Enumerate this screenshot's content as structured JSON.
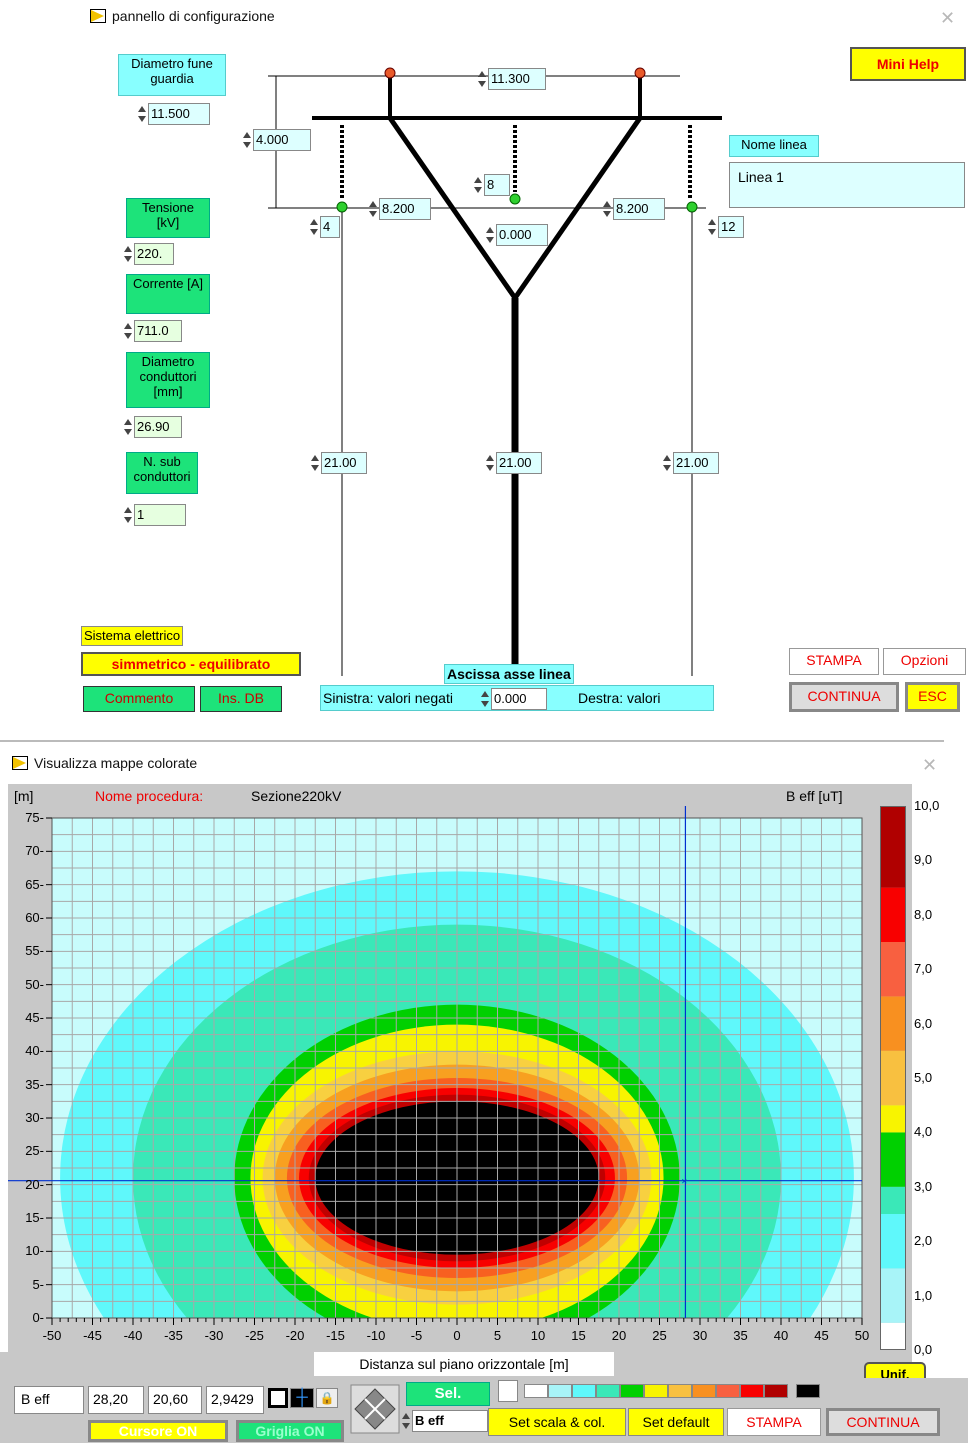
{
  "config_window": {
    "title": "pannello di configurazione",
    "mini_help": "Mini Help",
    "diametro_fune_label": "Diametro fune guardia",
    "diametro_fune_value": "11.500",
    "dist_guard_vertical": "4.000",
    "dist_guard_horizontal": "11.300",
    "nome_linea_label": "Nome linea",
    "nome_linea_value": "Linea 1",
    "tensione_label": "Tensione [kV]",
    "tensione_value": "220.",
    "corrente_label": "Corrente [A]",
    "corrente_value": "711.0",
    "diametro_cond_label": "Diametro conduttori [mm]",
    "diametro_cond_value": "26.90",
    "nsub_label": "N. sub conduttori",
    "nsub_value": "1",
    "phase_left_index": "4",
    "phase_center_index": "8",
    "phase_right_index": "12",
    "left_offset": "8.200",
    "right_offset": "8.200",
    "center_offset": "0.000",
    "height_left": "21.00",
    "height_center": "21.00",
    "height_right": "21.00",
    "sistema_label": "Sistema elettrico",
    "sistema_value": "simmetrico - equilibrato",
    "commento": "Commento",
    "ins_db": "Ins. DB",
    "ascissa_label": "Ascissa asse linea",
    "sinistra": "Sinistra: valori negati",
    "ascissa_value": "0.000",
    "destra": "Destra: valori",
    "stampa": "STAMPA",
    "opzioni": "Opzioni",
    "continua": "CONTINUA",
    "esc": "ESC"
  },
  "map_window": {
    "title": "Visualizza mappe colorate",
    "y_unit": "[m]",
    "nome_proc_label": "Nome procedura:",
    "nome_proc_value": "Sezione220kV",
    "field_label": "B eff [uT]",
    "xlabel": "Distanza sul piano orizzontale [m]",
    "unif": "Unif.",
    "cursor_field": "B eff",
    "cursor_x": "28,20",
    "cursor_y": "20,60",
    "cursor_val": "2,9429",
    "sel": "Sel.",
    "sel_value": "B eff",
    "set_scala": "Set scala & col.",
    "set_default": "Set default",
    "stampa": "STAMPA",
    "continua": "CONTINUA",
    "cursore_on": "Cursore ON",
    "griglia_on": "Griglia ON",
    "colors": {
      "c1": "#c8fcfc",
      "c2": "#5ff8fb",
      "c3": "#3ae8b8",
      "c4": "#00d000",
      "c5": "#f8f400",
      "c6": "#f8d040",
      "c7": "#f8a020",
      "c8": "#f86020",
      "c9": "#f80000",
      "c10": "#c00000",
      "c11": "#000000"
    }
  },
  "chart_data": {
    "type": "heatmap",
    "title": "",
    "xlabel": "Distanza sul piano orizzontale [m]",
    "ylabel": "[m]",
    "xlim": [
      -50,
      50
    ],
    "ylim": [
      0,
      75
    ],
    "x_ticks": [
      -50,
      -45,
      -40,
      -35,
      -30,
      -25,
      -20,
      -15,
      -10,
      -5,
      0,
      5,
      10,
      15,
      20,
      25,
      30,
      35,
      40,
      45,
      50
    ],
    "y_ticks": [
      0,
      5,
      10,
      15,
      20,
      25,
      30,
      35,
      40,
      45,
      50,
      55,
      60,
      65,
      70,
      75
    ],
    "colorbar_ticks": [
      "0,0",
      "1,0",
      "2,0",
      "3,0",
      "4,0",
      "5,0",
      "6,0",
      "7,0",
      "8,0",
      "9,0",
      "10,0"
    ],
    "colorbar_label": "B eff [uT]",
    "grid": true,
    "cursor": {
      "x": 28.2,
      "y": 20.6,
      "value": 2.9429
    },
    "contour_levels": [
      1,
      2,
      3,
      3.5,
      4,
      4.5,
      5,
      6,
      7,
      8
    ]
  }
}
